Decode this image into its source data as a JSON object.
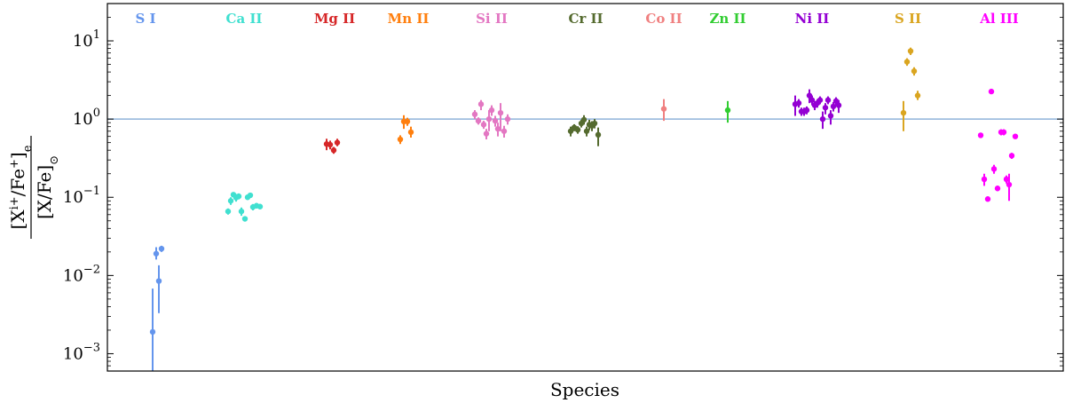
{
  "chart_data": {
    "type": "scatter",
    "xlabel": "Species",
    "ylabel_html": "[X<tspan baseline-shift='super' font-size='13'>i+</tspan>/Fe<tspan baseline-shift='super' font-size='13'>+</tspan>]<tspan baseline-shift='sub' font-size='13'>e</tspan>",
    "ylabel_num": "[X^{i+}/Fe^{+}]_e",
    "ylabel_den": "[X/Fe]_⊙",
    "yscale": "log",
    "ylim": [
      0.0006,
      30
    ],
    "yticks": [
      {
        "value": 0.001,
        "base": "10",
        "exp": "−3"
      },
      {
        "value": 0.01,
        "base": "10",
        "exp": "−2"
      },
      {
        "value": 0.1,
        "base": "10",
        "exp": "−1"
      },
      {
        "value": 1,
        "base": "10",
        "exp": "0"
      },
      {
        "value": 10,
        "base": "10",
        "exp": "1"
      }
    ],
    "hline": {
      "value": 1.0,
      "color": "#8fb3d9"
    },
    "xlim": [
      0,
      1077
    ],
    "series": [
      {
        "name": "S I",
        "color": "#6495ed",
        "label_x": 43,
        "points": [
          {
            "x": 51,
            "y": 0.0019,
            "lo": 0.0006,
            "hi": 0.0068
          },
          {
            "x": 55,
            "y": 0.019,
            "lo": 0.016,
            "hi": 0.023
          },
          {
            "x": 58,
            "y": 0.0085,
            "lo": 0.0033,
            "hi": 0.0135
          },
          {
            "x": 61,
            "y": 0.022,
            "lo": 0.02,
            "hi": 0.024
          }
        ]
      },
      {
        "name": "Ca II",
        "color": "#40e0d0",
        "label_x": 154,
        "points": [
          {
            "x": 136,
            "y": 0.066,
            "lo": 0.06,
            "hi": 0.072
          },
          {
            "x": 139,
            "y": 0.09,
            "lo": 0.08,
            "hi": 0.1
          },
          {
            "x": 142,
            "y": 0.108,
            "lo": 0.1,
            "hi": 0.116
          },
          {
            "x": 145,
            "y": 0.099,
            "lo": 0.088,
            "hi": 0.11
          },
          {
            "x": 148,
            "y": 0.103,
            "lo": 0.094,
            "hi": 0.112
          },
          {
            "x": 151,
            "y": 0.066,
            "lo": 0.058,
            "hi": 0.074
          },
          {
            "x": 155,
            "y": 0.053,
            "lo": 0.049,
            "hi": 0.057
          },
          {
            "x": 158,
            "y": 0.1,
            "lo": 0.094,
            "hi": 0.106
          },
          {
            "x": 161,
            "y": 0.106,
            "lo": 0.1,
            "hi": 0.112
          },
          {
            "x": 164,
            "y": 0.075,
            "lo": 0.068,
            "hi": 0.082
          },
          {
            "x": 168,
            "y": 0.078,
            "lo": 0.072,
            "hi": 0.084
          },
          {
            "x": 172,
            "y": 0.076,
            "lo": 0.071,
            "hi": 0.081
          }
        ]
      },
      {
        "name": "Mg II",
        "color": "#d62728",
        "label_x": 256,
        "points": [
          {
            "x": 247,
            "y": 0.48,
            "lo": 0.4,
            "hi": 0.56
          },
          {
            "x": 251,
            "y": 0.47,
            "lo": 0.41,
            "hi": 0.53
          },
          {
            "x": 255,
            "y": 0.4,
            "lo": 0.36,
            "hi": 0.44
          },
          {
            "x": 259,
            "y": 0.5,
            "lo": 0.45,
            "hi": 0.56
          }
        ]
      },
      {
        "name": "Mn II",
        "color": "#ff7f0e",
        "label_x": 339,
        "points": [
          {
            "x": 330,
            "y": 0.55,
            "lo": 0.48,
            "hi": 0.62
          },
          {
            "x": 334,
            "y": 0.93,
            "lo": 0.75,
            "hi": 1.12
          },
          {
            "x": 338,
            "y": 0.93,
            "lo": 0.82,
            "hi": 1.04
          },
          {
            "x": 342,
            "y": 0.68,
            "lo": 0.58,
            "hi": 0.8
          }
        ]
      },
      {
        "name": "Si II",
        "color": "#e377c2",
        "label_x": 433,
        "points": [
          {
            "x": 414,
            "y": 1.15,
            "lo": 1.0,
            "hi": 1.3
          },
          {
            "x": 418,
            "y": 0.95,
            "lo": 0.85,
            "hi": 1.05
          },
          {
            "x": 421,
            "y": 1.55,
            "lo": 1.3,
            "hi": 1.75
          },
          {
            "x": 424,
            "y": 0.85,
            "lo": 0.75,
            "hi": 0.95
          },
          {
            "x": 427,
            "y": 0.65,
            "lo": 0.55,
            "hi": 0.75
          },
          {
            "x": 430,
            "y": 1.0,
            "lo": 0.7,
            "hi": 1.3
          },
          {
            "x": 433,
            "y": 1.3,
            "lo": 1.1,
            "hi": 1.5
          },
          {
            "x": 437,
            "y": 0.95,
            "lo": 0.8,
            "hi": 1.1
          },
          {
            "x": 440,
            "y": 0.75,
            "lo": 0.6,
            "hi": 0.9
          },
          {
            "x": 443,
            "y": 1.2,
            "lo": 0.7,
            "hi": 1.6
          },
          {
            "x": 447,
            "y": 0.7,
            "lo": 0.58,
            "hi": 0.82
          },
          {
            "x": 451,
            "y": 1.0,
            "lo": 0.85,
            "hi": 1.15
          }
        ]
      },
      {
        "name": "Cr II",
        "color": "#556b2f",
        "label_x": 539,
        "points": [
          {
            "x": 522,
            "y": 0.7,
            "lo": 0.6,
            "hi": 0.8
          },
          {
            "x": 526,
            "y": 0.78,
            "lo": 0.7,
            "hi": 0.86
          },
          {
            "x": 530,
            "y": 0.73,
            "lo": 0.65,
            "hi": 0.81
          },
          {
            "x": 534,
            "y": 0.88,
            "lo": 0.78,
            "hi": 0.98
          },
          {
            "x": 537,
            "y": 0.98,
            "lo": 0.85,
            "hi": 1.12
          },
          {
            "x": 540,
            "y": 0.7,
            "lo": 0.6,
            "hi": 0.8
          },
          {
            "x": 543,
            "y": 0.85,
            "lo": 0.72,
            "hi": 0.98
          },
          {
            "x": 546,
            "y": 0.82,
            "lo": 0.7,
            "hi": 0.94
          },
          {
            "x": 549,
            "y": 0.88,
            "lo": 0.76,
            "hi": 1.0
          },
          {
            "x": 553,
            "y": 0.63,
            "lo": 0.45,
            "hi": 0.78
          }
        ]
      },
      {
        "name": "Co II",
        "color": "#f08080",
        "label_x": 627,
        "points": [
          {
            "x": 627,
            "y": 1.35,
            "lo": 0.95,
            "hi": 1.8
          }
        ]
      },
      {
        "name": "Zn II",
        "color": "#32cd32",
        "label_x": 699,
        "points": [
          {
            "x": 699,
            "y": 1.3,
            "lo": 0.9,
            "hi": 1.7
          }
        ]
      },
      {
        "name": "Ni II",
        "color": "#9400d3",
        "label_x": 794,
        "points": [
          {
            "x": 775,
            "y": 1.55,
            "lo": 1.1,
            "hi": 2.0
          },
          {
            "x": 779,
            "y": 1.6,
            "lo": 1.4,
            "hi": 1.8
          },
          {
            "x": 782,
            "y": 1.25,
            "lo": 1.1,
            "hi": 1.4
          },
          {
            "x": 785,
            "y": 1.25,
            "lo": 1.1,
            "hi": 1.4
          },
          {
            "x": 788,
            "y": 1.3,
            "lo": 1.15,
            "hi": 1.45
          },
          {
            "x": 791,
            "y": 2.0,
            "lo": 1.6,
            "hi": 2.4
          },
          {
            "x": 794,
            "y": 1.75,
            "lo": 1.5,
            "hi": 2.0
          },
          {
            "x": 797,
            "y": 1.5,
            "lo": 1.3,
            "hi": 1.7
          },
          {
            "x": 800,
            "y": 1.6,
            "lo": 1.4,
            "hi": 1.8
          },
          {
            "x": 803,
            "y": 1.75,
            "lo": 1.55,
            "hi": 1.95
          },
          {
            "x": 806,
            "y": 1.0,
            "lo": 0.75,
            "hi": 1.25
          },
          {
            "x": 809,
            "y": 1.4,
            "lo": 1.15,
            "hi": 1.6
          },
          {
            "x": 812,
            "y": 1.75,
            "lo": 1.55,
            "hi": 1.95
          },
          {
            "x": 815,
            "y": 1.1,
            "lo": 0.85,
            "hi": 1.3
          },
          {
            "x": 818,
            "y": 1.45,
            "lo": 1.25,
            "hi": 1.65
          },
          {
            "x": 821,
            "y": 1.7,
            "lo": 1.5,
            "hi": 1.9
          },
          {
            "x": 824,
            "y": 1.5,
            "lo": 1.2,
            "hi": 1.75
          }
        ]
      },
      {
        "name": "S II",
        "color": "#daa520",
        "label_x": 902,
        "points": [
          {
            "x": 897,
            "y": 1.2,
            "lo": 0.7,
            "hi": 1.7
          },
          {
            "x": 901,
            "y": 5.4,
            "lo": 4.8,
            "hi": 6.0
          },
          {
            "x": 905,
            "y": 7.4,
            "lo": 6.6,
            "hi": 8.2
          },
          {
            "x": 909,
            "y": 4.1,
            "lo": 3.6,
            "hi": 4.6
          },
          {
            "x": 913,
            "y": 2.0,
            "lo": 1.75,
            "hi": 2.3
          }
        ]
      },
      {
        "name": "Al III",
        "color": "#ff00ff",
        "label_x": 1005,
        "points": [
          {
            "x": 984,
            "y": 0.62,
            "lo": 0.59,
            "hi": 0.65
          },
          {
            "x": 988,
            "y": 0.17,
            "lo": 0.14,
            "hi": 0.2
          },
          {
            "x": 992,
            "y": 0.095,
            "lo": 0.09,
            "hi": 0.1
          },
          {
            "x": 996,
            "y": 2.25,
            "lo": 2.1,
            "hi": 2.4
          },
          {
            "x": 999,
            "y": 0.23,
            "lo": 0.2,
            "hi": 0.26
          },
          {
            "x": 1003,
            "y": 0.13,
            "lo": 0.12,
            "hi": 0.14
          },
          {
            "x": 1007,
            "y": 0.68,
            "lo": 0.62,
            "hi": 0.74
          },
          {
            "x": 1010,
            "y": 0.68,
            "lo": 0.62,
            "hi": 0.74
          },
          {
            "x": 1013,
            "y": 0.17,
            "lo": 0.15,
            "hi": 0.19
          },
          {
            "x": 1016,
            "y": 0.145,
            "lo": 0.09,
            "hi": 0.2
          },
          {
            "x": 1019,
            "y": 0.34,
            "lo": 0.31,
            "hi": 0.37
          },
          {
            "x": 1023,
            "y": 0.6,
            "lo": 0.56,
            "hi": 0.64
          }
        ]
      }
    ]
  }
}
